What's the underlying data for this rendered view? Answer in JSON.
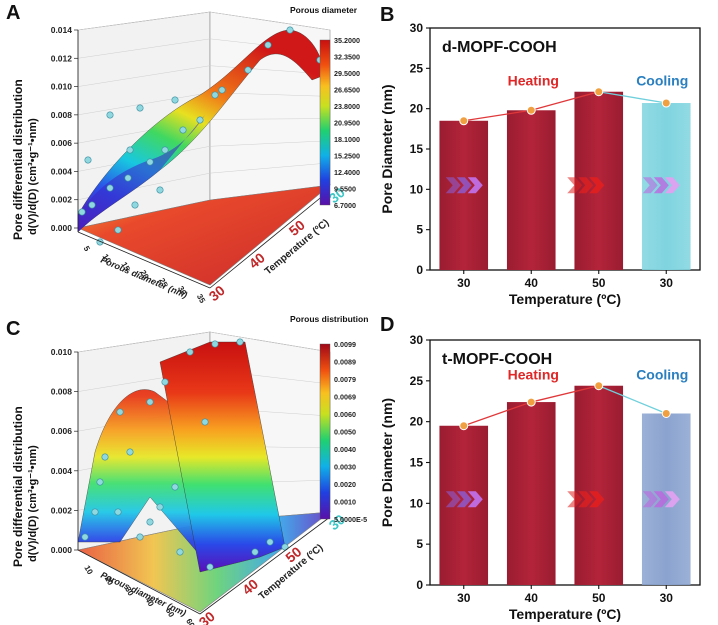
{
  "chart_data": [
    {
      "panel": "A",
      "type": "surface3d",
      "title": "",
      "zlabel_line1": "Pore differential distribution",
      "zlabel_line2": "d(V)/d(D) (cm³•g⁻¹•nm)",
      "xlabel": "Porous diameter (nm)",
      "ylabel": "Temperature (ºC)",
      "z_ticks": [
        "0.000",
        "0.002",
        "0.004",
        "0.006",
        "0.008",
        "0.010",
        "0.012",
        "0.014"
      ],
      "x_ticks": [
        "5",
        "10",
        "15",
        "20",
        "25",
        "30",
        "35"
      ],
      "y_ticks": [
        {
          "label": "30",
          "color": "#c0282a"
        },
        {
          "label": "40",
          "color": "#c0282a"
        },
        {
          "label": "50",
          "color": "#c0282a"
        },
        {
          "label": "30",
          "color": "#3fc6c6"
        }
      ],
      "zlim": [
        0,
        0.014
      ],
      "colorbar": {
        "title": "Porous diameter",
        "ticks": [
          "35.2000",
          "32.3500",
          "29.5000",
          "26.6500",
          "23.8000",
          "20.9500",
          "18.1000",
          "15.2500",
          "12.4000",
          "9.5500",
          "6.7000"
        ]
      }
    },
    {
      "panel": "B",
      "type": "bar",
      "title": "d-MOPF-COOH",
      "xlabel": "Temperature (ºC)",
      "ylabel": "Pore Diameter (nm)",
      "categories": [
        "30",
        "40",
        "50",
        "30"
      ],
      "values": [
        18.5,
        19.8,
        22.1,
        20.7
      ],
      "ylim": [
        0,
        30
      ],
      "yticks": [
        0,
        5,
        10,
        15,
        20,
        25,
        30
      ],
      "annotations": [
        {
          "text": "Heating",
          "color": "#e02727"
        },
        {
          "text": "Cooling",
          "color": "#2a7fc0"
        }
      ],
      "phases": [
        "heating",
        "heating",
        "heating",
        "cooling"
      ]
    },
    {
      "panel": "C",
      "type": "surface3d",
      "title": "",
      "zlabel_line1": "Pore differential distribution",
      "zlabel_line2": "d(V)/d(D) (cm³•g⁻¹•nm)",
      "xlabel": "Porous diameter (nm)",
      "ylabel": "Temperature (ºC)",
      "z_ticks": [
        "0.000",
        "0.002",
        "0.004",
        "0.006",
        "0.008",
        "0.010"
      ],
      "x_ticks": [
        "10",
        "20",
        "30",
        "40",
        "50",
        "60"
      ],
      "y_ticks": [
        {
          "label": "30",
          "color": "#c0282a"
        },
        {
          "label": "40",
          "color": "#c0282a"
        },
        {
          "label": "50",
          "color": "#c0282a"
        },
        {
          "label": "30",
          "color": "#3fc6c6"
        }
      ],
      "zlim": [
        0,
        0.01
      ],
      "colorbar": {
        "title": "Porous distribution",
        "ticks": [
          "0.0099",
          "0.0089",
          "0.0079",
          "0.0069",
          "0.0060",
          "0.0050",
          "0.0040",
          "0.0030",
          "0.0020",
          "0.0010",
          "5.0000E-5"
        ]
      }
    },
    {
      "panel": "D",
      "type": "bar",
      "title": "t-MOPF-COOH",
      "xlabel": "Temperature (ºC)",
      "ylabel": "Pore Diameter (nm)",
      "categories": [
        "30",
        "40",
        "50",
        "30"
      ],
      "values": [
        19.5,
        22.4,
        24.4,
        21.0
      ],
      "ylim": [
        0,
        30
      ],
      "yticks": [
        0,
        5,
        10,
        15,
        20,
        25,
        30
      ],
      "annotations": [
        {
          "text": "Heating",
          "color": "#e02727"
        },
        {
          "text": "Cooling",
          "color": "#2a7fc0"
        }
      ],
      "phases": [
        "heating",
        "heating",
        "heating",
        "cooling"
      ]
    }
  ],
  "panels": {
    "A": {
      "letter": "A"
    },
    "B": {
      "letter": "B"
    },
    "C": {
      "letter": "C"
    },
    "D": {
      "letter": "D"
    }
  },
  "colors": {
    "heating_bar": "#b3243a",
    "cooling_bar_B": "#7fd4df",
    "cooling_bar_D": "#8aa3cf",
    "heating_line": "#e0383a",
    "cooling_line": "#6fd0dc",
    "marker": "#f0a040"
  }
}
